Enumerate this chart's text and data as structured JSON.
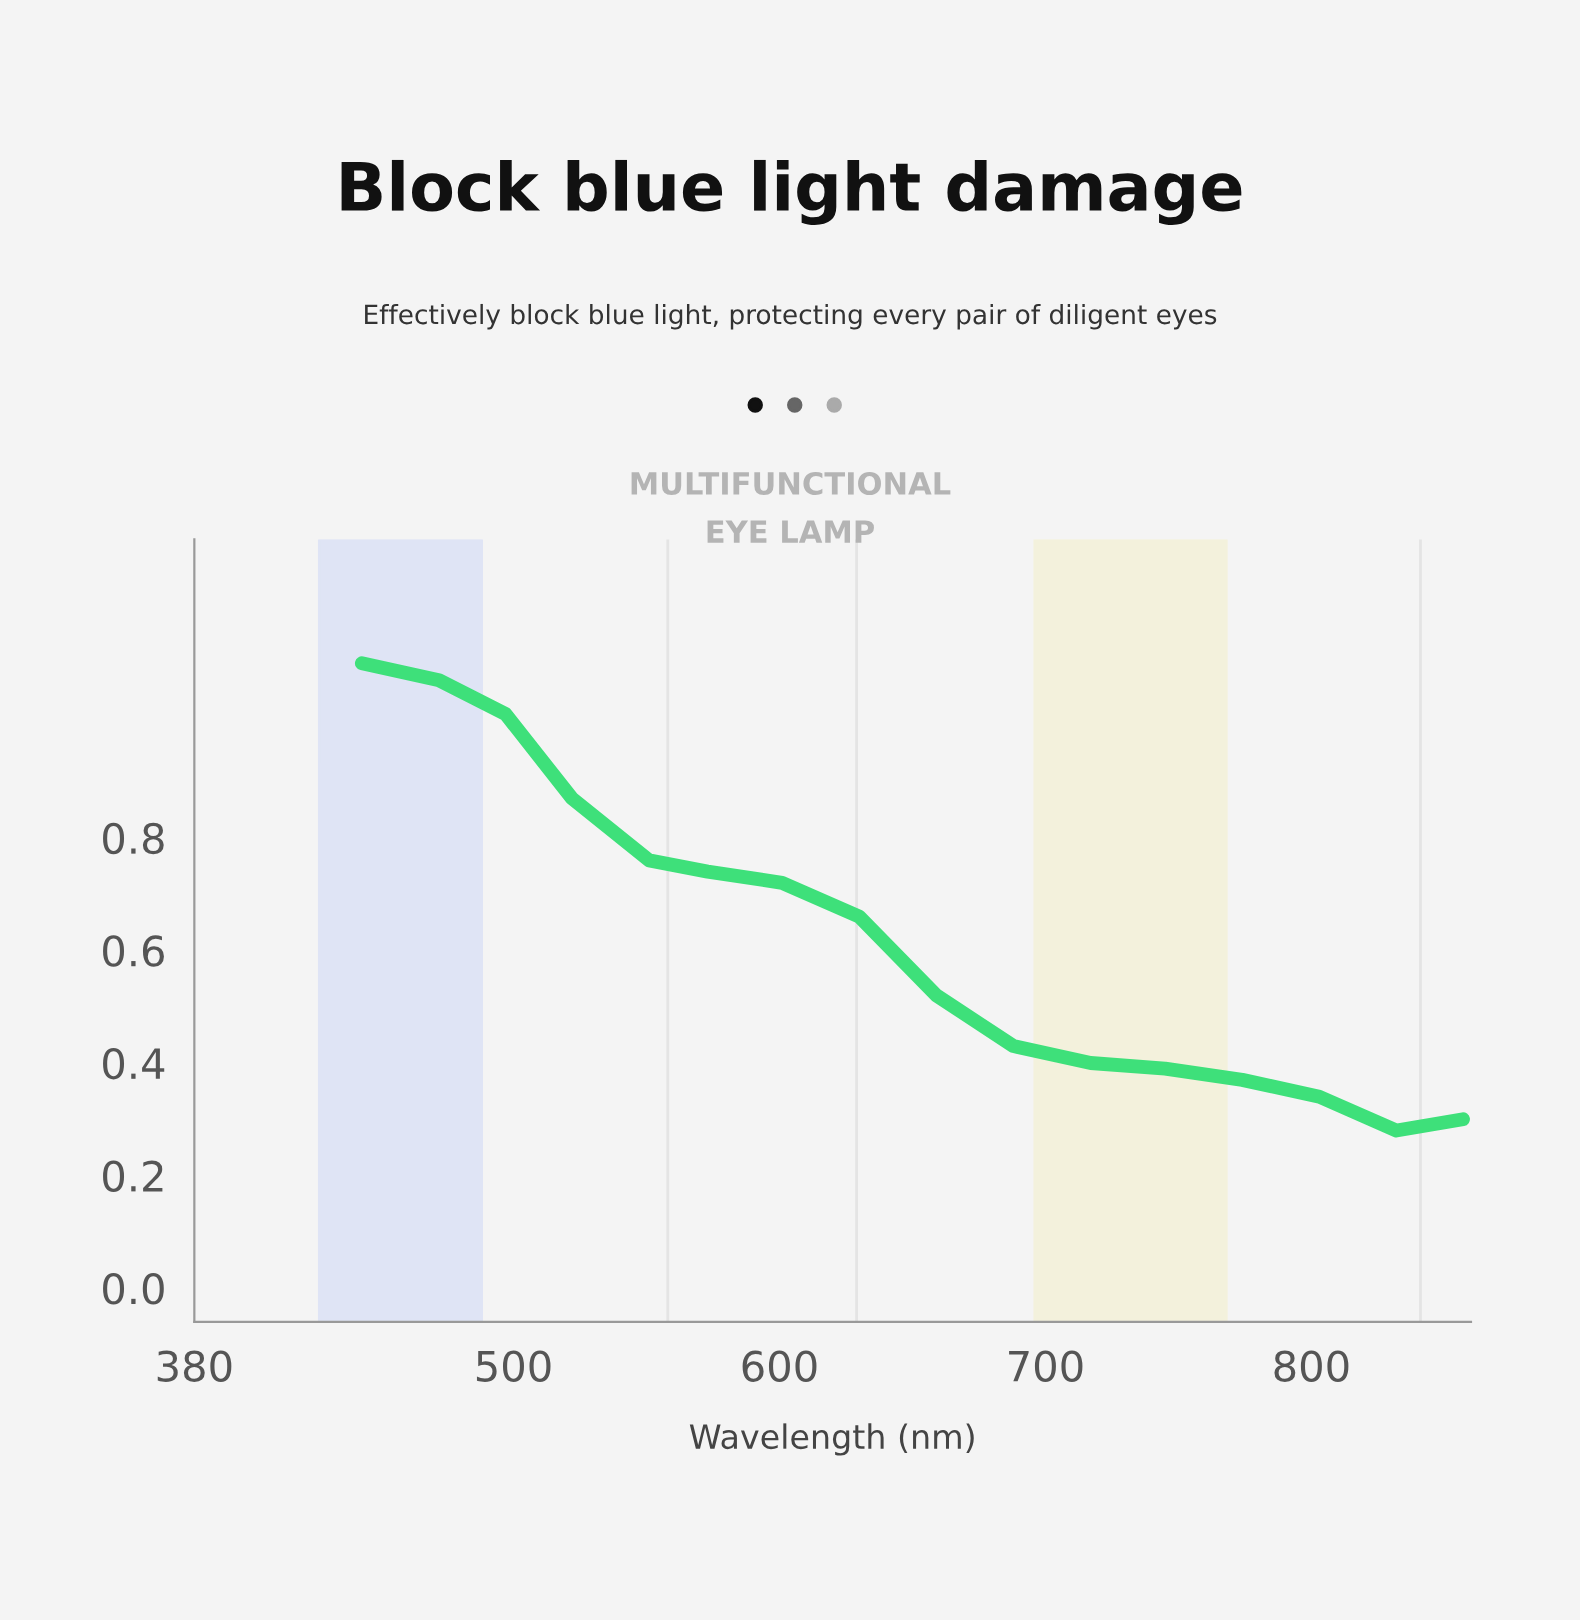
{
  "chart_data": {
    "type": "line",
    "title": "Block blue light damage",
    "subtitle": "Effectively block blue light, protecting every pair of diligent eyes",
    "annotations": [
      "MULTIFUNCTIONAL\nEYE LAMP"
    ],
    "xlabel": "Wavelength (nm)",
    "x": [
      443,
      472,
      497,
      522,
      551,
      573,
      601,
      630,
      659,
      688,
      717,
      745,
      774,
      803,
      832,
      857
    ],
    "series": [
      {
        "color": "#3ee07a",
        "values": [
          1.11,
          1.08,
          1.02,
          0.87,
          0.76,
          0.74,
          0.72,
          0.66,
          0.52,
          0.43,
          0.4,
          0.39,
          0.37,
          0.34,
          0.28,
          0.3
        ]
      }
    ],
    "xlim": [
      380,
      860
    ],
    "ylim": [
      -0.06,
      1.33
    ],
    "xticks": [
      380,
      500,
      600,
      700,
      800
    ],
    "yticks": [
      {
        "value": 0,
        "label": "0.0"
      },
      0.2,
      0.4,
      0.6,
      0.8
    ],
    "bands": [
      {
        "axis": "x",
        "from": 427,
        "to": 488,
        "color": "#dfe4f5"
      },
      {
        "axis": "x",
        "from": 696,
        "to": 768,
        "color": "#f3f1dc"
      }
    ],
    "ref_lines": [
      {
        "axis": "x",
        "value": 558,
        "color": "#e4e4e4"
      },
      {
        "axis": "x",
        "value": 629,
        "color": "#e4e4e4"
      },
      {
        "axis": "x",
        "value": 841,
        "color": "#e4e4e4"
      }
    ],
    "grid": false,
    "legend": false,
    "marker": "none",
    "line_style": "solid"
  }
}
